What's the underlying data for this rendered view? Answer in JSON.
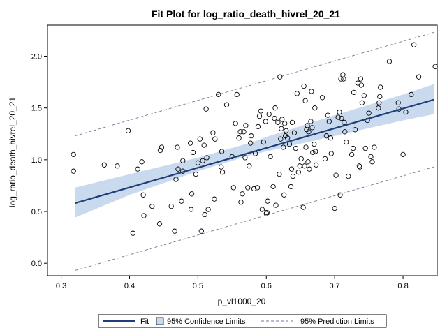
{
  "chart_data": {
    "type": "scatter",
    "title": "Fit Plot for log_ratio_death_hivrel_20_21",
    "xlabel": "p_vl1000_20",
    "ylabel": "log_ratio_death_hivrel_20_21",
    "xlim": [
      0.28,
      0.85
    ],
    "ylim": [
      -0.12,
      2.3
    ],
    "x_ticks": [
      0.3,
      0.4,
      0.5,
      0.6,
      0.7,
      0.8
    ],
    "x_tick_labels": [
      "0.3",
      "0.4",
      "0.5",
      "0.6",
      "0.7",
      "0.8"
    ],
    "y_ticks": [
      0.0,
      0.5,
      1.0,
      1.5,
      2.0
    ],
    "y_tick_labels": [
      "0.0",
      "0.5",
      "1.0",
      "1.5",
      "2.0"
    ],
    "grid": false,
    "legend_position": "bottom",
    "legend": [
      {
        "label": "Fit",
        "kind": "line"
      },
      {
        "label": "95% Confidence Limits",
        "kind": "band"
      },
      {
        "label": "95% Prediction Limits",
        "kind": "dashed"
      }
    ],
    "fit_line": {
      "x": [
        0.32,
        0.845
      ],
      "y": [
        0.58,
        1.58
      ]
    },
    "confidence_limits": {
      "x": [
        0.32,
        0.4,
        0.5,
        0.58,
        0.6,
        0.7,
        0.8,
        0.845
      ],
      "lower": [
        0.44,
        0.66,
        0.89,
        1.05,
        1.08,
        1.23,
        1.38,
        1.44
      ],
      "upper": [
        0.73,
        0.86,
        1.02,
        1.17,
        1.22,
        1.43,
        1.63,
        1.73
      ]
    },
    "prediction_limits": {
      "x": [
        0.32,
        0.845
      ],
      "lower": [
        -0.07,
        0.93
      ],
      "upper": [
        1.23,
        2.23
      ]
    },
    "points": [
      [
        0.318,
        1.05
      ],
      [
        0.318,
        0.89
      ],
      [
        0.363,
        0.95
      ],
      [
        0.382,
        0.94
      ],
      [
        0.398,
        1.28
      ],
      [
        0.405,
        0.29
      ],
      [
        0.412,
        0.91
      ],
      [
        0.418,
        0.98
      ],
      [
        0.42,
        0.66
      ],
      [
        0.421,
        0.46
      ],
      [
        0.433,
        0.55
      ],
      [
        0.444,
        0.38
      ],
      [
        0.445,
        1.09
      ],
      [
        0.447,
        1.12
      ],
      [
        0.461,
        0.55
      ],
      [
        0.466,
        0.31
      ],
      [
        0.468,
        0.81
      ],
      [
        0.47,
        1.12
      ],
      [
        0.471,
        0.91
      ],
      [
        0.476,
        0.6
      ],
      [
        0.478,
        0.89
      ],
      [
        0.478,
        0.99
      ],
      [
        0.489,
        1.16
      ],
      [
        0.49,
        0.52
      ],
      [
        0.491,
        0.67
      ],
      [
        0.493,
        1.07
      ],
      [
        0.497,
        0.86
      ],
      [
        0.5,
        0.97
      ],
      [
        0.503,
        1.2
      ],
      [
        0.505,
        0.31
      ],
      [
        0.507,
        0.99
      ],
      [
        0.509,
        1.14
      ],
      [
        0.51,
        0.47
      ],
      [
        0.512,
        1.49
      ],
      [
        0.513,
        1.02
      ],
      [
        0.515,
        0.52
      ],
      [
        0.522,
        1.26
      ],
      [
        0.524,
        0.62
      ],
      [
        0.525,
        1.2
      ],
      [
        0.53,
        1.63
      ],
      [
        0.534,
        0.93
      ],
      [
        0.536,
        0.88
      ],
      [
        0.535,
        1.08
      ],
      [
        0.542,
        1.53
      ],
      [
        0.55,
        1.03
      ],
      [
        0.552,
        0.73
      ],
      [
        0.555,
        1.35
      ],
      [
        0.557,
        1.63
      ],
      [
        0.56,
        1.21
      ],
      [
        0.562,
        1.27
      ],
      [
        0.563,
        0.59
      ],
      [
        0.565,
        0.67
      ],
      [
        0.567,
        1.27
      ],
      [
        0.569,
        1.02
      ],
      [
        0.57,
        1.33
      ],
      [
        0.573,
        0.73
      ],
      [
        0.575,
        0.94
      ],
      [
        0.577,
        1.16
      ],
      [
        0.578,
        1.23
      ],
      [
        0.582,
        0.72
      ],
      [
        0.584,
        1.06
      ],
      [
        0.587,
        0.73
      ],
      [
        0.588,
        1.32
      ],
      [
        0.59,
        1.42
      ],
      [
        0.592,
        1.47
      ],
      [
        0.594,
        0.52
      ],
      [
        0.596,
        1.17
      ],
      [
        0.599,
        1.37
      ],
      [
        0.6,
        0.48
      ],
      [
        0.601,
        0.49
      ],
      [
        0.602,
        0.6
      ],
      [
        0.604,
        1.44
      ],
      [
        0.606,
        1.03
      ],
      [
        0.61,
        0.74
      ],
      [
        0.612,
        1.4
      ],
      [
        0.613,
        1.5
      ],
      [
        0.614,
        0.56
      ],
      [
        0.617,
        1.36
      ],
      [
        0.619,
        0.86
      ],
      [
        0.62,
        1.8
      ],
      [
        0.621,
        1.2
      ],
      [
        0.622,
        1.3
      ],
      [
        0.623,
        1.39
      ],
      [
        0.625,
        1.12
      ],
      [
        0.626,
        0.66
      ],
      [
        0.627,
        1.35
      ],
      [
        0.628,
        1.23
      ],
      [
        0.629,
        1.28
      ],
      [
        0.631,
        1.21
      ],
      [
        0.634,
        1.15
      ],
      [
        0.636,
        0.74
      ],
      [
        0.637,
        0.91
      ],
      [
        0.638,
        1.36
      ],
      [
        0.639,
        0.84
      ],
      [
        0.641,
        1.26
      ],
      [
        0.643,
        1.11
      ],
      [
        0.645,
        1.64
      ],
      [
        0.647,
        0.88
      ],
      [
        0.649,
        0.94
      ],
      [
        0.651,
        1.01
      ],
      [
        0.654,
        0.54
      ],
      [
        0.655,
        1.71
      ],
      [
        0.656,
        0.94
      ],
      [
        0.657,
        1.57
      ],
      [
        0.658,
        1.12
      ],
      [
        0.659,
        1.29
      ],
      [
        0.66,
        1.33
      ],
      [
        0.661,
        0.98
      ],
      [
        0.662,
        1.27
      ],
      [
        0.663,
        0.91
      ],
      [
        0.665,
        1.37
      ],
      [
        0.666,
        1.66
      ],
      [
        0.667,
        1.31
      ],
      [
        0.668,
        1.07
      ],
      [
        0.67,
        1.15
      ],
      [
        0.671,
        1.5
      ],
      [
        0.672,
        1.08
      ],
      [
        0.673,
        0.95
      ],
      [
        0.682,
        1.6
      ],
      [
        0.686,
        1.01
      ],
      [
        0.688,
        1.23
      ],
      [
        0.69,
        1.43
      ],
      [
        0.692,
        1.37
      ],
      [
        0.694,
        1.21
      ],
      [
        0.695,
        1.06
      ],
      [
        0.7,
        0.53
      ],
      [
        0.702,
        0.85
      ],
      [
        0.705,
        1.41
      ],
      [
        0.707,
        1.46
      ],
      [
        0.708,
        0.66
      ],
      [
        0.709,
        1.78
      ],
      [
        0.71,
        1.4
      ],
      [
        0.712,
        1.82
      ],
      [
        0.713,
        1.78
      ],
      [
        0.714,
        1.36
      ],
      [
        0.715,
        1.27
      ],
      [
        0.717,
        1.17
      ],
      [
        0.72,
        0.84
      ],
      [
        0.725,
        1.05
      ],
      [
        0.727,
        1.11
      ],
      [
        0.728,
        1.65
      ],
      [
        0.73,
        1.29
      ],
      [
        0.734,
        1.74
      ],
      [
        0.736,
        0.94
      ],
      [
        0.737,
        0.93
      ],
      [
        0.738,
        1.78
      ],
      [
        0.739,
        1.72
      ],
      [
        0.74,
        1.55
      ],
      [
        0.743,
        1.62
      ],
      [
        0.745,
        1.11
      ],
      [
        0.748,
        1.38
      ],
      [
        0.75,
        1.45
      ],
      [
        0.753,
        1.03
      ],
      [
        0.755,
        0.98
      ],
      [
        0.758,
        1.12
      ],
      [
        0.764,
        1.5
      ],
      [
        0.765,
        1.55
      ],
      [
        0.766,
        1.61
      ],
      [
        0.767,
        1.7
      ],
      [
        0.78,
        1.95
      ],
      [
        0.793,
        1.55
      ],
      [
        0.794,
        1.49
      ],
      [
        0.8,
        1.05
      ],
      [
        0.804,
        1.46
      ],
      [
        0.812,
        1.63
      ],
      [
        0.816,
        2.11
      ],
      [
        0.823,
        1.8
      ],
      [
        0.847,
        1.9
      ]
    ]
  }
}
